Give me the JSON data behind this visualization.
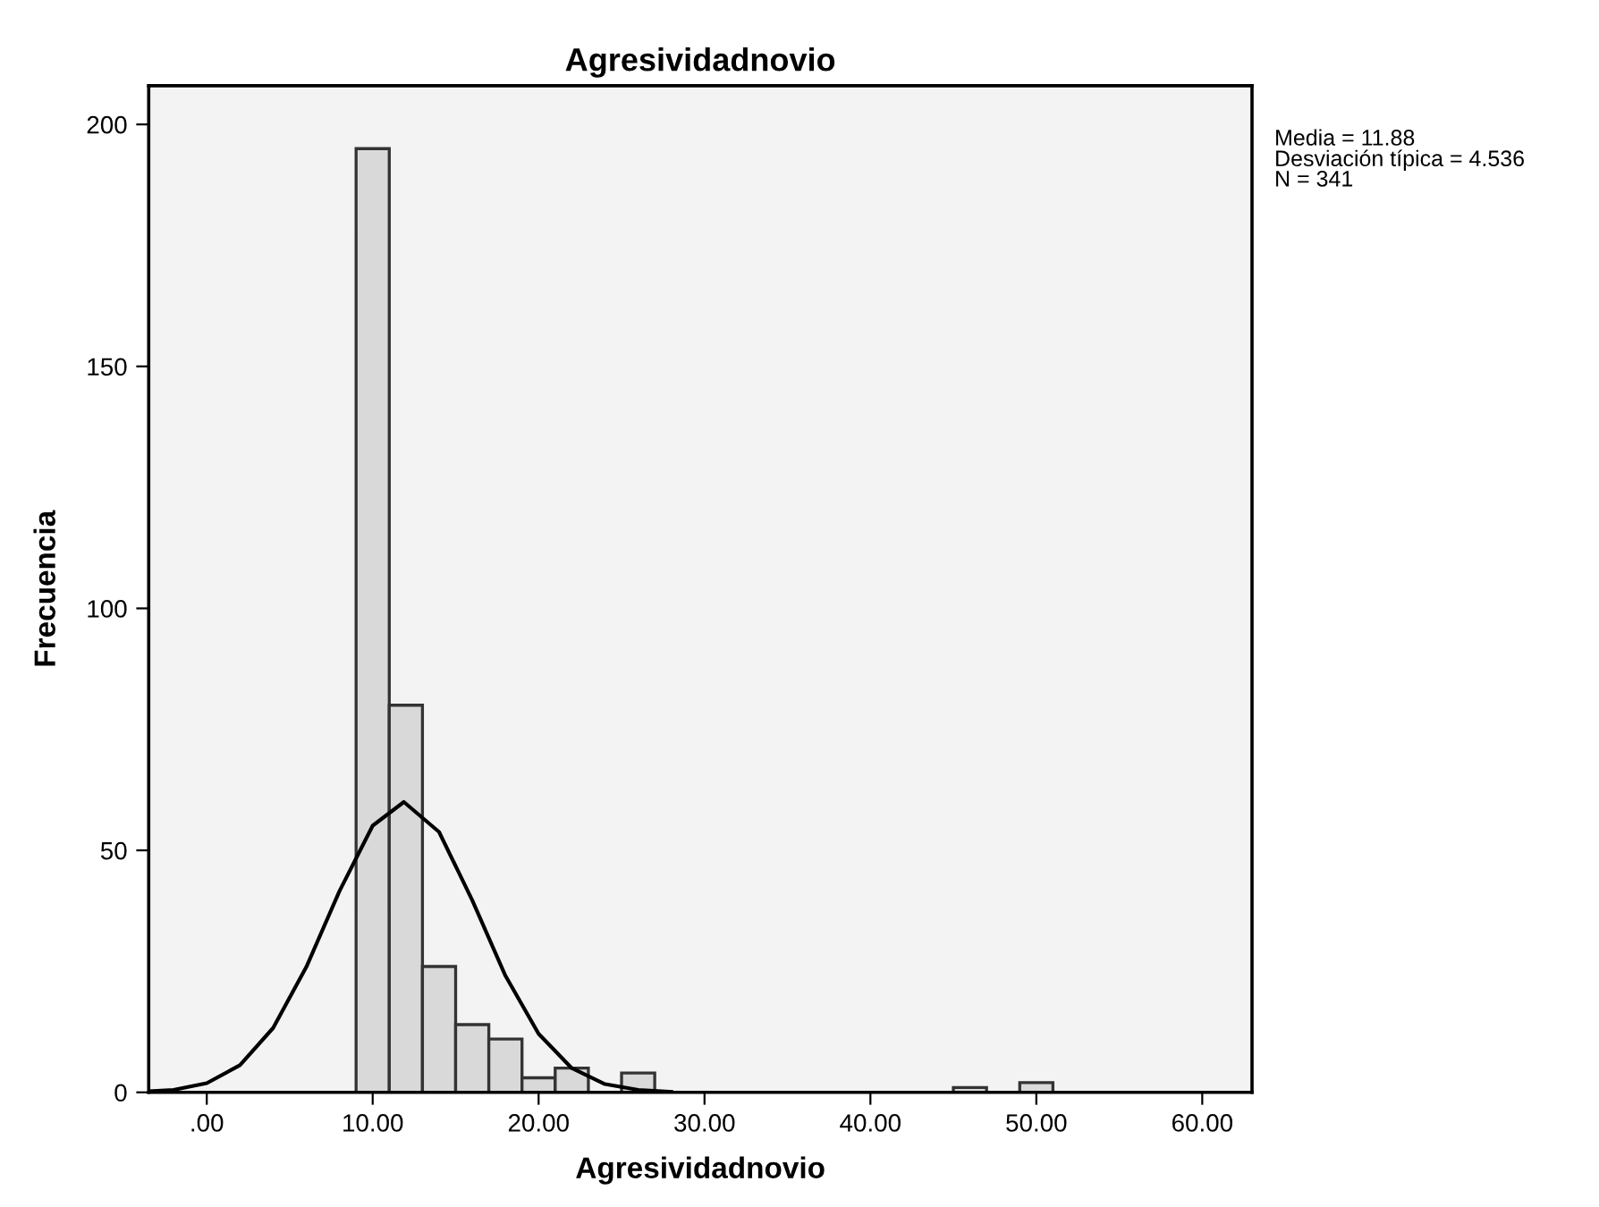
{
  "chart_data": {
    "type": "histogram",
    "title": "Agresividadnovio",
    "xlabel": "Agresividadnovio",
    "ylabel": "Frecuencia",
    "annotations": [
      "Media = 11.88",
      "Desviación típica = 4.536",
      "N = 341"
    ],
    "series": [
      {
        "color": "#d9d9d9",
        "bins": [
          9,
          11,
          13,
          15,
          17,
          19,
          21,
          23,
          25,
          27,
          29,
          31,
          33,
          35,
          37,
          39,
          41,
          43,
          45,
          47,
          49,
          51
        ],
        "values": [
          195,
          80,
          26,
          14,
          11,
          3,
          5,
          0,
          4,
          0,
          0,
          0,
          0,
          0,
          0,
          0,
          0,
          0,
          1,
          0,
          2
        ]
      },
      {
        "type": "line",
        "color": "#000000",
        "x": [
          -3.5,
          -2,
          0,
          2,
          4,
          6,
          8,
          10,
          11.88,
          14,
          16,
          18,
          20,
          22,
          24,
          26,
          28
        ],
        "values": [
          0.2,
          0.5,
          1.9,
          5.6,
          13.3,
          25.9,
          41.6,
          55.1,
          60,
          53.8,
          39.7,
          24.1,
          12.1,
          5.0,
          1.7,
          0.5,
          0.1
        ]
      }
    ],
    "xlim": [
      -3.5,
      63
    ],
    "ylim": [
      0,
      208
    ],
    "xticks": [
      {
        "value": 0,
        "label": ".00"
      },
      {
        "value": 10,
        "label": "10.00"
      },
      {
        "value": 20,
        "label": "20.00"
      },
      {
        "value": 30,
        "label": "30.00"
      },
      {
        "value": 40,
        "label": "40.00"
      },
      {
        "value": 50,
        "label": "50.00"
      },
      {
        "value": 60,
        "label": "60.00"
      }
    ],
    "yticks": [
      0,
      50,
      100,
      150,
      200
    ],
    "grid": false,
    "legend": false
  }
}
